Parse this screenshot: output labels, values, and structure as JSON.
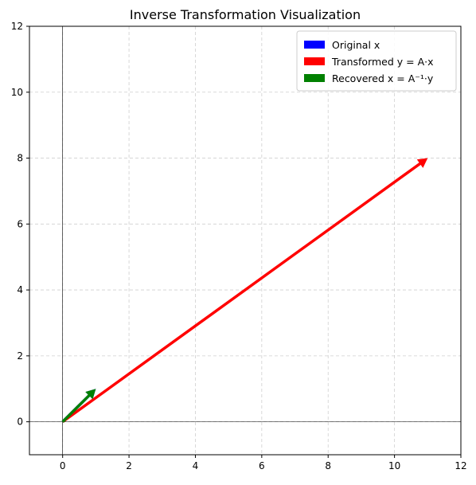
{
  "chart_data": {
    "type": "quiver",
    "title": "Inverse Transformation Visualization",
    "xlabel": "",
    "ylabel": "",
    "xlim": [
      -1,
      12
    ],
    "ylim": [
      -1,
      12
    ],
    "xticks": [
      0,
      2,
      4,
      6,
      8,
      10,
      12
    ],
    "yticks": [
      0,
      2,
      4,
      6,
      8,
      10,
      12
    ],
    "grid": true,
    "axis_lines_at_origin": true,
    "legend": {
      "placement": "top-right",
      "entries": [
        {
          "label": "Original x",
          "color": "#0000ff"
        },
        {
          "label": "Transformed y = A·x",
          "color": "#ff0000"
        },
        {
          "label": "Recovered x = A⁻¹·y",
          "color": "#008000"
        }
      ]
    },
    "series": [
      {
        "name": "Original x",
        "color": "#0000ff",
        "origin": [
          0,
          0
        ],
        "vector": [
          1,
          1
        ]
      },
      {
        "name": "Transformed y = A·x",
        "color": "#ff0000",
        "origin": [
          0,
          0
        ],
        "vector": [
          11,
          8
        ]
      },
      {
        "name": "Recovered x = A⁻¹·y",
        "color": "#008000",
        "origin": [
          0,
          0
        ],
        "vector": [
          1,
          1
        ]
      }
    ]
  }
}
